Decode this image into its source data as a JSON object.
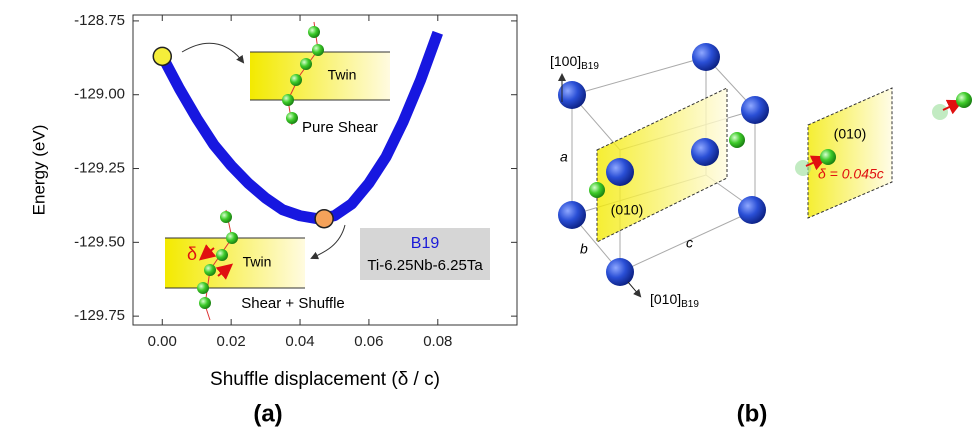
{
  "chart_data": {
    "type": "line",
    "x_label": "Shuffle displacement (δ / c)",
    "y_label": "Energy (eV)",
    "x": [
      0,
      0.005,
      0.01,
      0.015,
      0.02,
      0.025,
      0.03,
      0.035,
      0.04,
      0.045,
      0.05,
      0.055,
      0.06,
      0.065,
      0.07,
      0.075,
      0.08
    ],
    "series": [
      {
        "color": "#1717e0",
        "values": [
          -128.87,
          -128.98,
          -129.08,
          -129.17,
          -129.24,
          -129.3,
          -129.35,
          -129.39,
          -129.41,
          -129.42,
          -129.41,
          -129.37,
          -129.3,
          -129.21,
          -129.09,
          -128.95,
          -128.79
        ]
      }
    ],
    "markers": [
      {
        "x": 0,
        "y": -128.87,
        "color": "#f5ee3a"
      },
      {
        "x": 0.047,
        "y": -129.42,
        "color": "#f5a25a"
      }
    ],
    "xlim": [
      -0.0085,
      0.103
    ],
    "ylim": [
      -129.78,
      -128.73
    ],
    "xticks": [
      {
        "value": 0,
        "label": "0.00"
      },
      0.02,
      0.04,
      0.06,
      0.08
    ],
    "yticks": [
      -128.75,
      {
        "value": -129,
        "label": "-129.00"
      },
      -129.25,
      {
        "value": -129.5,
        "label": "-129.50"
      },
      -129.75
    ],
    "grid": false,
    "annotations": {
      "twin_top": "Twin",
      "pure_shear": "Pure Shear",
      "twin_bottom": "Twin",
      "delta": "δ",
      "shear_shuffle": "Shear + Shuffle",
      "phase": "B19",
      "alloy": "Ti-6.25Nb-6.25Ta"
    },
    "panel_label": "(a)"
  },
  "diagram": {
    "panel_label": "(b)",
    "axis_100": {
      "main": "[100]",
      "sub": "B19"
    },
    "axis_010": {
      "main": "[010]",
      "sub": "B19"
    },
    "a": "a",
    "b": "b",
    "c": "c",
    "plane_left": "(010)",
    "plane_right": "(010)",
    "shuffle": "δ = 0.045c"
  }
}
